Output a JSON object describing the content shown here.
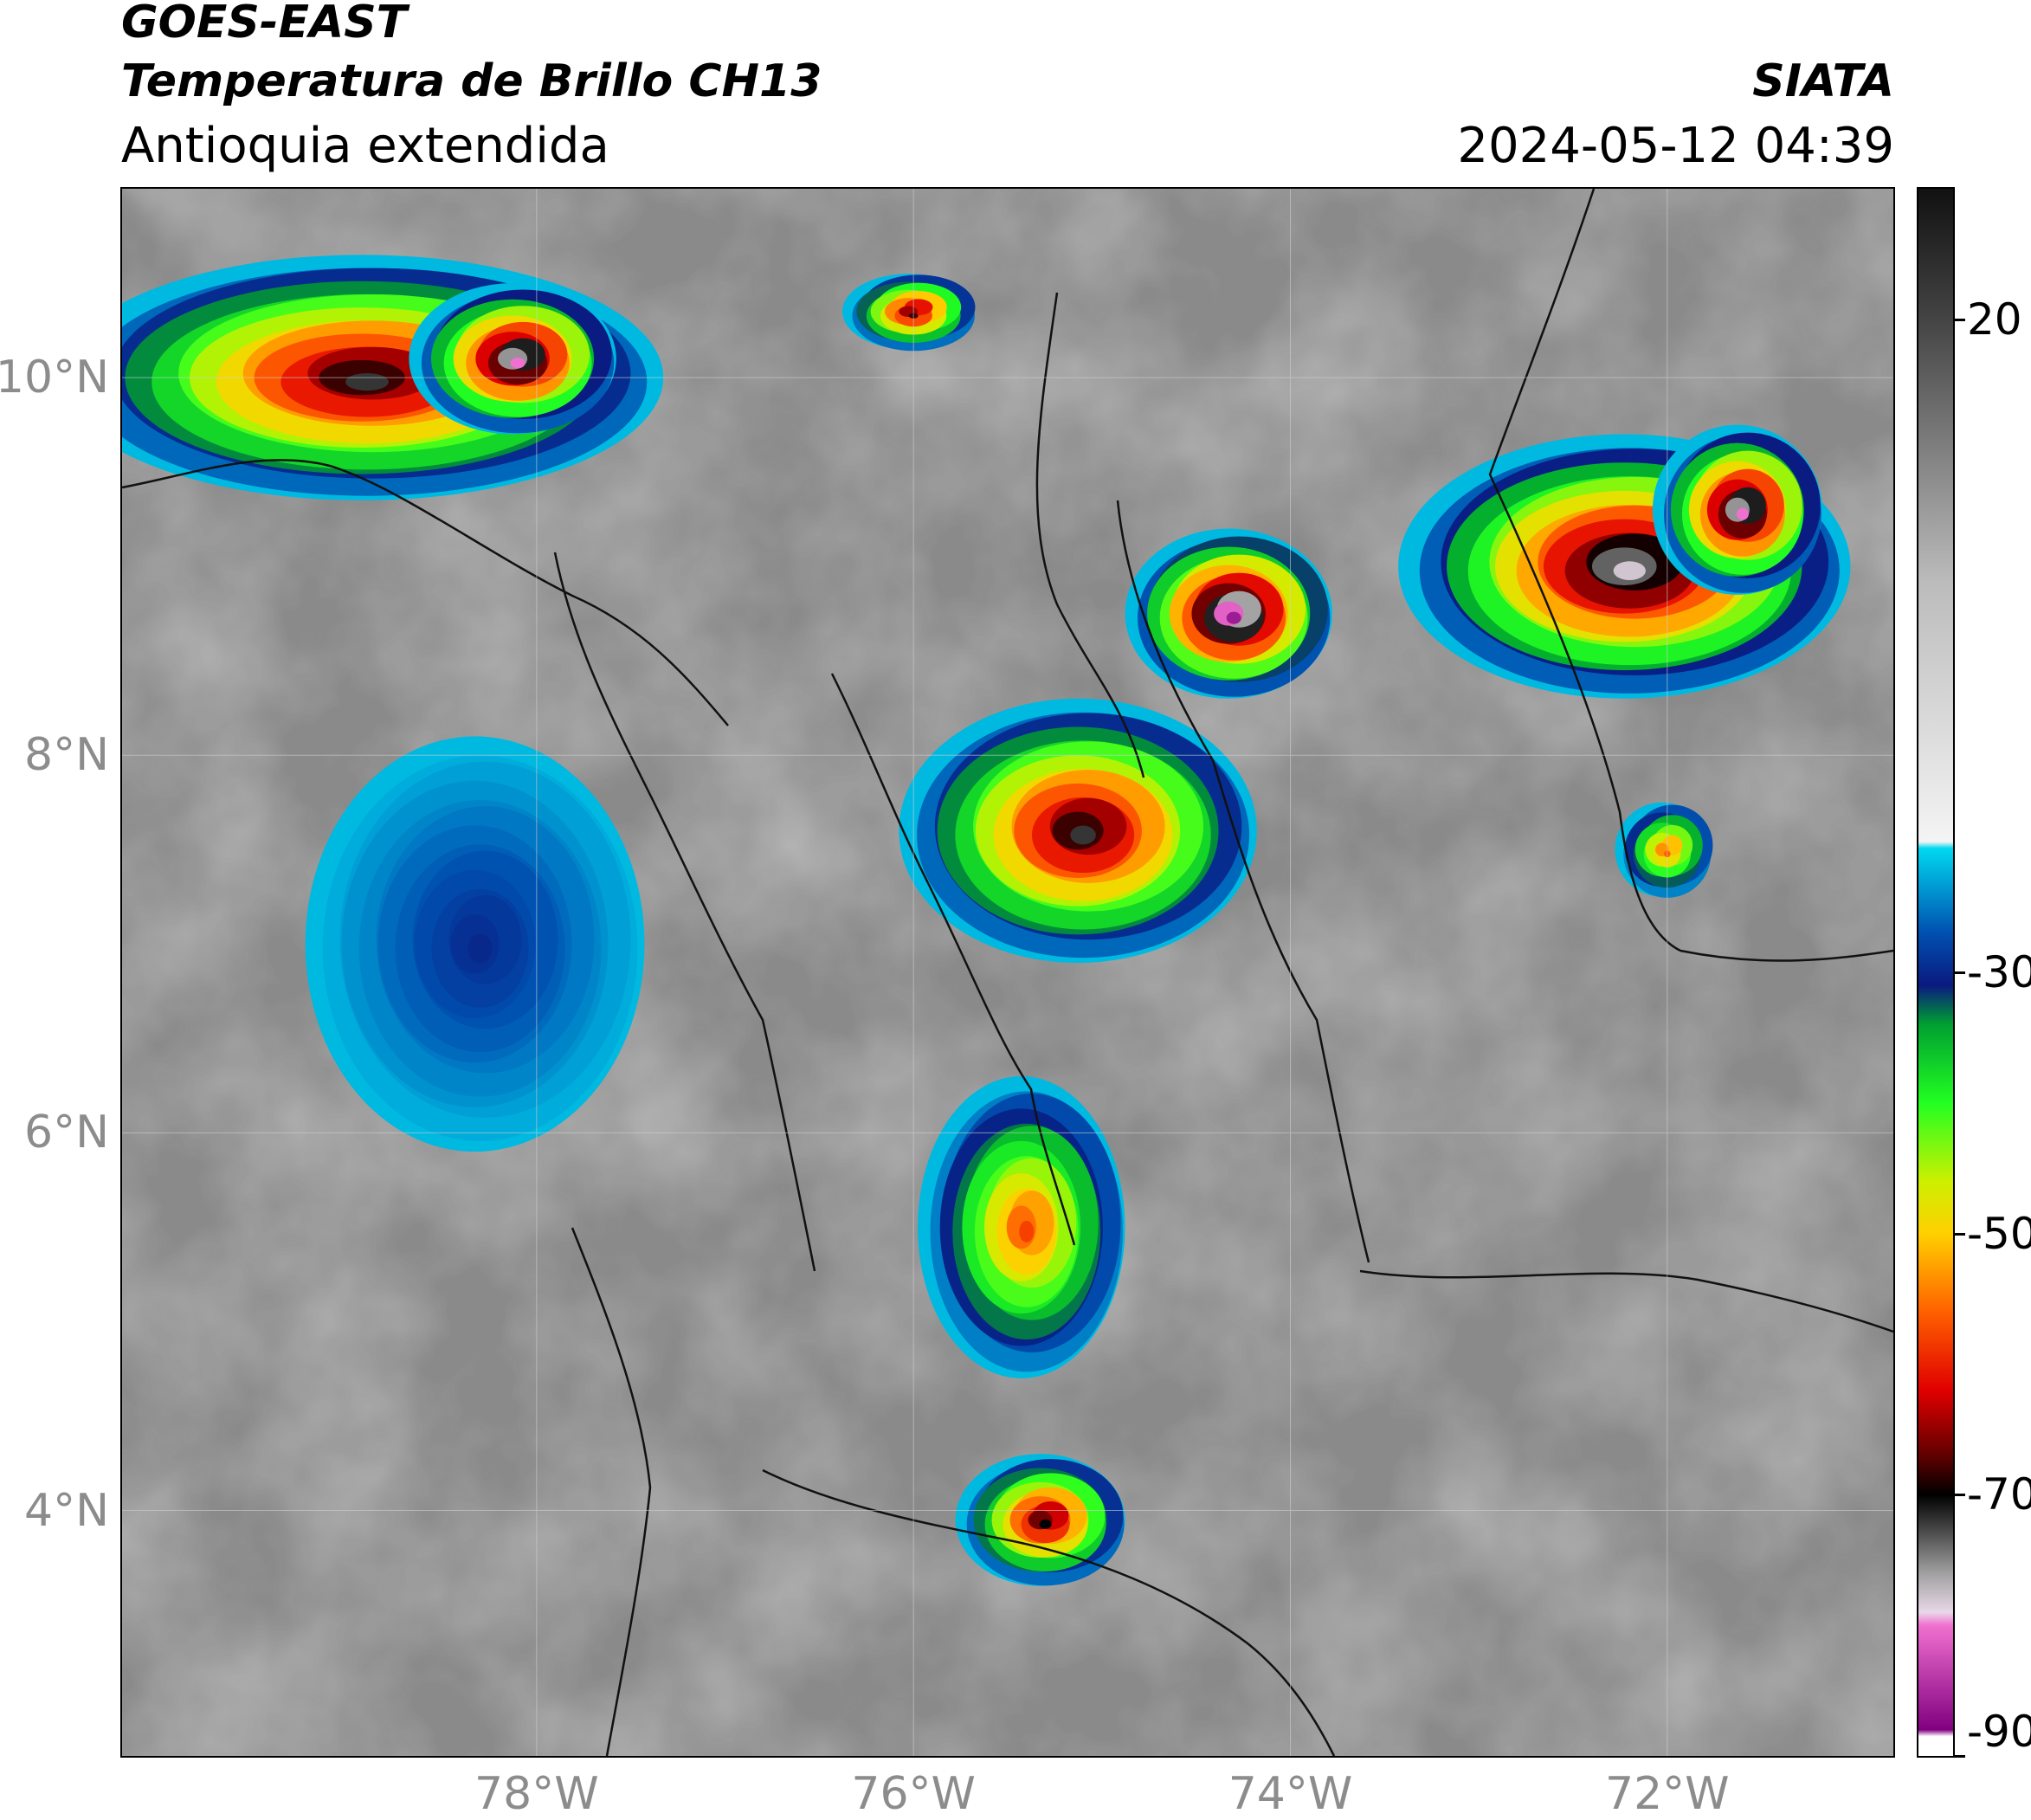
{
  "header": {
    "satellite": "GOES-EAST",
    "product": "Temperatura de Brillo CH13",
    "region": "Antioquia extendida",
    "organization": "SIATA",
    "datetime": "2024-05-12 04:39"
  },
  "map": {
    "extent": {
      "lon": [
        -80.2,
        -70.8
      ],
      "lat": [
        2.7,
        11.0
      ]
    },
    "lat_ticks": [
      {
        "value": 10,
        "label": "10°N"
      },
      {
        "value": 8,
        "label": "8°N"
      },
      {
        "value": 6,
        "label": "6°N"
      },
      {
        "value": 4,
        "label": "4°N"
      }
    ],
    "lon_ticks": [
      {
        "value": -78,
        "label": "78°W"
      },
      {
        "value": -76,
        "label": "76°W"
      },
      {
        "value": -74,
        "label": "74°W"
      },
      {
        "value": -72,
        "label": "72°W"
      }
    ],
    "gridlines": true,
    "background_color": "#8a8a8a"
  },
  "colorbar": {
    "range": [
      -90,
      30
    ],
    "ticks": [
      {
        "value": 20,
        "label": "20"
      },
      {
        "value": -30,
        "label": "-30"
      },
      {
        "value": -50,
        "label": "-50"
      },
      {
        "value": -70,
        "label": "-70"
      },
      {
        "value": -90,
        "label": "-90"
      }
    ],
    "palette": [
      {
        "value": 30,
        "color": "#111111"
      },
      {
        "value": 20,
        "color": "#444444"
      },
      {
        "value": 0,
        "color": "#bbbbbb"
      },
      {
        "value": -20,
        "color": "#f4f4f4"
      },
      {
        "value": -20.5,
        "color": "#00d8f0"
      },
      {
        "value": -27,
        "color": "#0050b0"
      },
      {
        "value": -31,
        "color": "#0a1a80"
      },
      {
        "value": -34,
        "color": "#00a030"
      },
      {
        "value": -40,
        "color": "#22ff22"
      },
      {
        "value": -46,
        "color": "#ccf000"
      },
      {
        "value": -50,
        "color": "#ffd000"
      },
      {
        "value": -56,
        "color": "#ff6000"
      },
      {
        "value": -62,
        "color": "#e00000"
      },
      {
        "value": -67,
        "color": "#600000"
      },
      {
        "value": -70,
        "color": "#000000"
      },
      {
        "value": -76,
        "color": "#a0a0a0"
      },
      {
        "value": -79,
        "color": "#e8d8e8"
      },
      {
        "value": -80,
        "color": "#f070d0"
      },
      {
        "value": -88,
        "color": "#800080"
      },
      {
        "value": -88.5,
        "color": "#ffffff"
      },
      {
        "value": -90,
        "color": "#ffffff"
      }
    ]
  },
  "cloud_systems": [
    {
      "name": "caribbean-west",
      "lon": -78.9,
      "lat": 10.0,
      "rx": 1.6,
      "ry": 0.65,
      "peak_temp": -72
    },
    {
      "name": "caribbean-west-core",
      "lon": -78.1,
      "lat": 10.1,
      "rx": 0.55,
      "ry": 0.4,
      "peak_temp": -80
    },
    {
      "name": "north-small-core",
      "lon": -76.0,
      "lat": 10.35,
      "rx": 0.35,
      "ry": 0.2,
      "peak_temp": -68
    },
    {
      "name": "magdalena-core",
      "lon": -74.3,
      "lat": 8.75,
      "rx": 0.55,
      "ry": 0.45,
      "peak_temp": -86
    },
    {
      "name": "antioquia-north",
      "lon": -75.1,
      "lat": 7.6,
      "rx": 0.95,
      "ry": 0.7,
      "peak_temp": -72
    },
    {
      "name": "east-system",
      "lon": -72.2,
      "lat": 9.0,
      "rx": 1.2,
      "ry": 0.7,
      "peak_temp": -78
    },
    {
      "name": "east-system-core",
      "lon": -71.6,
      "lat": 9.3,
      "rx": 0.45,
      "ry": 0.45,
      "peak_temp": -80
    },
    {
      "name": "pacific-blue",
      "lon": -78.3,
      "lat": 7.0,
      "rx": 0.9,
      "ry": 1.1,
      "peak_temp": -30
    },
    {
      "name": "central-south",
      "lon": -75.4,
      "lat": 5.5,
      "rx": 0.55,
      "ry": 0.8,
      "peak_temp": -58
    },
    {
      "name": "south-core",
      "lon": -75.3,
      "lat": 3.95,
      "rx": 0.45,
      "ry": 0.35,
      "peak_temp": -70
    },
    {
      "name": "east-small",
      "lon": -72.0,
      "lat": 7.5,
      "rx": 0.25,
      "ry": 0.25,
      "peak_temp": -56
    }
  ]
}
